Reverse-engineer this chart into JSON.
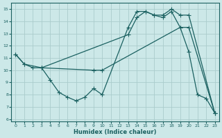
{
  "xlabel": "Humidex (Indice chaleur)",
  "bg_color": "#cce8e8",
  "grid_color": "#aacccc",
  "line_color": "#1a6060",
  "xlim": [
    -0.5,
    23.5
  ],
  "ylim": [
    5.8,
    15.5
  ],
  "yticks": [
    6,
    7,
    8,
    9,
    10,
    11,
    12,
    13,
    14,
    15
  ],
  "xticks": [
    0,
    1,
    2,
    3,
    4,
    5,
    6,
    7,
    8,
    9,
    10,
    11,
    12,
    13,
    14,
    15,
    16,
    17,
    18,
    19,
    20,
    21,
    22,
    23
  ],
  "line1_x": [
    0,
    1,
    2,
    3,
    9,
    10,
    19,
    20,
    21,
    22,
    23
  ],
  "line1_y": [
    11.3,
    10.5,
    10.2,
    10.2,
    10.0,
    10.0,
    13.5,
    11.5,
    8.0,
    7.7,
    6.5
  ],
  "line2_x": [
    0,
    1,
    3,
    13,
    14,
    15,
    16,
    17,
    18,
    19,
    20,
    23
  ],
  "line2_y": [
    11.3,
    10.5,
    10.2,
    12.9,
    14.3,
    14.8,
    14.5,
    14.5,
    15.0,
    14.5,
    14.5,
    6.5
  ],
  "line3_x": [
    3,
    4,
    5,
    6,
    7,
    8,
    9,
    10,
    13,
    14,
    15,
    16,
    17,
    18,
    19,
    20,
    23
  ],
  "line3_y": [
    10.2,
    9.2,
    8.2,
    7.8,
    7.5,
    7.8,
    8.5,
    8.0,
    13.5,
    14.8,
    14.8,
    14.5,
    14.3,
    14.8,
    13.5,
    13.5,
    6.5
  ]
}
